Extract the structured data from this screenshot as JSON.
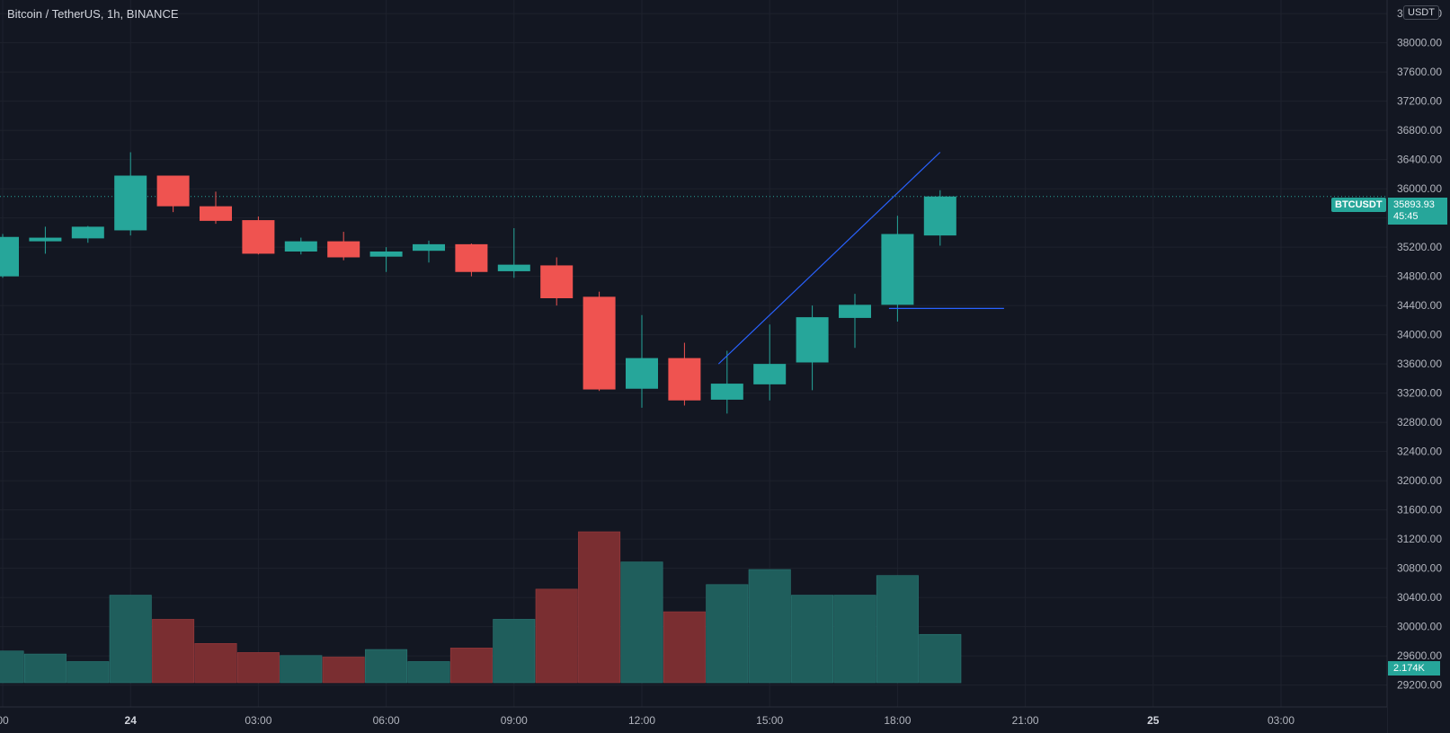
{
  "header": {
    "title": "Bitcoin / TetherUS, 1h, BINANCE",
    "currency": "USDT"
  },
  "badges": {
    "symbol": "BTCUSDT",
    "last_price": "35893.93",
    "countdown": "45:45",
    "volume": "2.174K"
  },
  "colors": {
    "up": "#26a69a",
    "down": "#ef5350",
    "vol_up": "#1f5e5c",
    "vol_down": "#7a2e31",
    "background": "#131722",
    "grid": "#1e222d",
    "trendline": "#2962ff"
  },
  "chart_data": {
    "type": "candlestick",
    "timeframe": "1h",
    "x_ticks": [
      {
        "label": "00",
        "x": 0
      },
      {
        "label": "24",
        "x": 3
      },
      {
        "label": "03:00",
        "x": 6
      },
      {
        "label": "06:00",
        "x": 9
      },
      {
        "label": "09:00",
        "x": 12
      },
      {
        "label": "12:00",
        "x": 15
      },
      {
        "label": "15:00",
        "x": 18
      },
      {
        "label": "18:00",
        "x": 21
      },
      {
        "label": "21:00",
        "x": 24
      },
      {
        "label": "25",
        "x": 27
      },
      {
        "label": "03:00",
        "x": 30
      }
    ],
    "price_ticks": [
      29200,
      29600,
      30000,
      30400,
      30800,
      31200,
      31600,
      32000,
      32400,
      32800,
      33200,
      33600,
      34000,
      34400,
      34800,
      35200,
      35600,
      36000,
      36400,
      36800,
      37200,
      37600,
      38000,
      38400
    ],
    "ylim": [
      28900,
      38500
    ],
    "candles": [
      {
        "x": 0,
        "o": 34800,
        "h": 35380,
        "l": 34780,
        "c": 35340
      },
      {
        "x": 1,
        "o": 35280,
        "h": 35480,
        "l": 35110,
        "c": 35330
      },
      {
        "x": 2,
        "o": 35320,
        "h": 35490,
        "l": 35260,
        "c": 35480
      },
      {
        "x": 3,
        "o": 35430,
        "h": 36500,
        "l": 35360,
        "c": 36180
      },
      {
        "x": 4,
        "o": 36180,
        "h": 36180,
        "l": 35680,
        "c": 35760
      },
      {
        "x": 5,
        "o": 35760,
        "h": 35960,
        "l": 35520,
        "c": 35560
      },
      {
        "x": 6,
        "o": 35570,
        "h": 35620,
        "l": 35100,
        "c": 35110
      },
      {
        "x": 7,
        "o": 35140,
        "h": 35330,
        "l": 35100,
        "c": 35280
      },
      {
        "x": 8,
        "o": 35280,
        "h": 35410,
        "l": 35020,
        "c": 35060
      },
      {
        "x": 9,
        "o": 35070,
        "h": 35200,
        "l": 34860,
        "c": 35140
      },
      {
        "x": 10,
        "o": 35150,
        "h": 35290,
        "l": 34990,
        "c": 35240
      },
      {
        "x": 11,
        "o": 35240,
        "h": 35250,
        "l": 34800,
        "c": 34860
      },
      {
        "x": 12,
        "o": 34870,
        "h": 35460,
        "l": 34780,
        "c": 34960
      },
      {
        "x": 13,
        "o": 34950,
        "h": 35060,
        "l": 34400,
        "c": 34500
      },
      {
        "x": 14,
        "o": 34520,
        "h": 34590,
        "l": 33230,
        "c": 33250
      },
      {
        "x": 15,
        "o": 33260,
        "h": 34270,
        "l": 33000,
        "c": 33680
      },
      {
        "x": 16,
        "o": 33680,
        "h": 33890,
        "l": 33030,
        "c": 33100
      },
      {
        "x": 17,
        "o": 33110,
        "h": 33780,
        "l": 32920,
        "c": 33330
      },
      {
        "x": 18,
        "o": 33320,
        "h": 34140,
        "l": 33100,
        "c": 33600
      },
      {
        "x": 19,
        "o": 33620,
        "h": 34400,
        "l": 33240,
        "c": 34240
      },
      {
        "x": 20,
        "o": 34230,
        "h": 34560,
        "l": 33820,
        "c": 34410
      },
      {
        "x": 21,
        "o": 34410,
        "h": 35630,
        "l": 34180,
        "c": 35380
      },
      {
        "x": 22,
        "o": 35360,
        "h": 35980,
        "l": 35220,
        "c": 35894
      }
    ],
    "volume": [
      {
        "x": 0,
        "v": 0.21,
        "up": true
      },
      {
        "x": 1,
        "v": 0.19,
        "up": true
      },
      {
        "x": 2,
        "v": 0.14,
        "up": true
      },
      {
        "x": 3,
        "v": 0.58,
        "up": true
      },
      {
        "x": 4,
        "v": 0.42,
        "up": false
      },
      {
        "x": 5,
        "v": 0.26,
        "up": false
      },
      {
        "x": 6,
        "v": 0.2,
        "up": false
      },
      {
        "x": 7,
        "v": 0.18,
        "up": true
      },
      {
        "x": 8,
        "v": 0.17,
        "up": false
      },
      {
        "x": 9,
        "v": 0.22,
        "up": true
      },
      {
        "x": 10,
        "v": 0.14,
        "up": true
      },
      {
        "x": 11,
        "v": 0.23,
        "up": false
      },
      {
        "x": 12,
        "v": 0.42,
        "up": true
      },
      {
        "x": 13,
        "v": 0.62,
        "up": false
      },
      {
        "x": 14,
        "v": 1.0,
        "up": false
      },
      {
        "x": 15,
        "v": 0.8,
        "up": true
      },
      {
        "x": 16,
        "v": 0.47,
        "up": false
      },
      {
        "x": 17,
        "v": 0.65,
        "up": true
      },
      {
        "x": 18,
        "v": 0.75,
        "up": true
      },
      {
        "x": 19,
        "v": 0.58,
        "up": true
      },
      {
        "x": 20,
        "v": 0.58,
        "up": true
      },
      {
        "x": 21,
        "v": 0.71,
        "up": true
      },
      {
        "x": 22,
        "v": 0.32,
        "up": true
      }
    ],
    "drawings": [
      {
        "type": "trendline",
        "from": {
          "x": 16.8,
          "price": 33600
        },
        "to": {
          "x": 22.0,
          "price": 36500
        }
      },
      {
        "type": "horizontal-segment",
        "from": {
          "x": 20.8,
          "price": 34360
        },
        "to": {
          "x": 23.5,
          "price": 34360
        }
      }
    ],
    "last_price_line": 35894
  }
}
